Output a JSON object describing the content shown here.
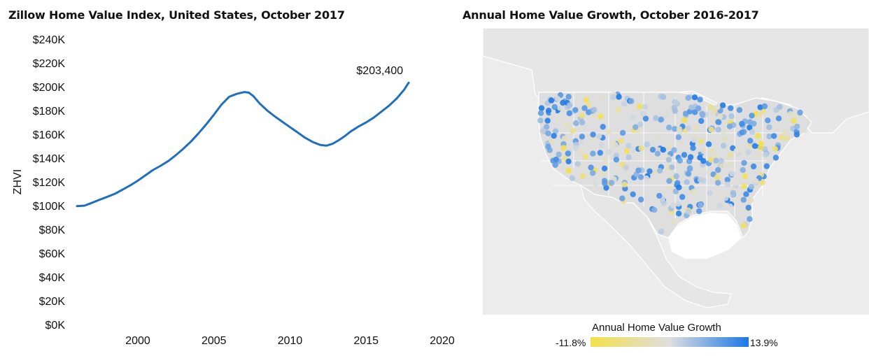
{
  "left_panel": {
    "title": "Zillow Home Value Index, United States, October 2017"
  },
  "right_panel": {
    "title": "Annual Home Value Growth, October 2016-2017"
  },
  "chart_data": [
    {
      "type": "line",
      "title": "Zillow Home Value Index, United States, October 2017",
      "xlabel": "",
      "ylabel": "ZHVI",
      "xlim": [
        1996,
        2020
      ],
      "ylim": [
        0,
        240000
      ],
      "x_ticks": [
        "2000",
        "2005",
        "2010",
        "2015",
        "2020"
      ],
      "y_ticks": [
        "$0K",
        "$20K",
        "$40K",
        "$60K",
        "$80K",
        "$100K",
        "$120K",
        "$140K",
        "$160K",
        "$180K",
        "$200K",
        "$220K",
        "$240K"
      ],
      "grid": false,
      "series": [
        {
          "color": "#1f6fbf",
          "x": [
            1996.0,
            1996.5,
            1997.0,
            1997.5,
            1998.0,
            1998.5,
            1999.0,
            1999.5,
            2000.0,
            2000.5,
            2001.0,
            2001.5,
            2002.0,
            2002.5,
            2003.0,
            2003.5,
            2004.0,
            2004.5,
            2005.0,
            2005.5,
            2006.0,
            2006.5,
            2007.0,
            2007.3,
            2007.6,
            2008.0,
            2008.5,
            2009.0,
            2009.5,
            2010.0,
            2010.5,
            2011.0,
            2011.5,
            2012.0,
            2012.4,
            2012.8,
            2013.2,
            2013.6,
            2014.0,
            2014.5,
            2015.0,
            2015.5,
            2016.0,
            2016.5,
            2017.0,
            2017.5,
            2017.8
          ],
          "values": [
            99500,
            100000,
            102500,
            105000,
            107500,
            110000,
            113500,
            117000,
            121000,
            125500,
            130000,
            133500,
            137500,
            142500,
            148000,
            154000,
            161000,
            168500,
            176500,
            185000,
            191500,
            194000,
            195500,
            195000,
            192000,
            186000,
            180000,
            175000,
            170500,
            166000,
            161500,
            157000,
            153500,
            151000,
            150500,
            152000,
            155000,
            158500,
            162500,
            166500,
            170000,
            174000,
            179000,
            184000,
            190000,
            197500,
            203400
          ]
        }
      ],
      "annotations": [
        {
          "text": "$203,400",
          "x": 2017.8,
          "y": 203400
        }
      ]
    },
    {
      "type": "scatter",
      "title": "Annual Home Value Growth, October 2016-2017",
      "legend": {
        "title": "Annual Home Value Growth",
        "min_label": "-11.8%",
        "max_label": "13.9%",
        "colors": [
          "#f4e04a",
          "#dedede",
          "#1a78e6"
        ]
      },
      "grid": false,
      "map_colors": {
        "land": "#e3e3e3",
        "water": "#ffffff",
        "borders": "#ffffff"
      }
    }
  ]
}
